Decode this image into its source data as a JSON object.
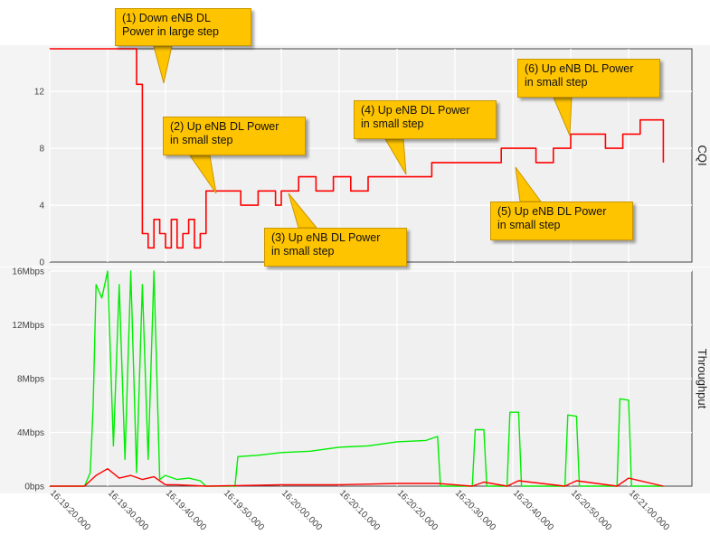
{
  "chart_data": [
    {
      "type": "line",
      "title": "",
      "ylabel": "CQI",
      "ylim": [
        0,
        15
      ],
      "yticks": [
        0,
        4,
        8,
        12
      ],
      "grid": true,
      "series": [
        {
          "color": "#ff0000",
          "x": [
            "16:19:20",
            "16:19:34.7",
            "16:19:35",
            "16:19:36",
            "16:19:37",
            "16:19:38",
            "16:19:39",
            "16:19:40",
            "16:19:41",
            "16:19:42",
            "16:19:43",
            "16:19:44",
            "16:19:45",
            "16:19:46",
            "16:19:46.5",
            "16:19:47",
            "16:19:50",
            "16:19:53",
            "16:19:56",
            "16:19:59",
            "16:20:00",
            "16:20:03",
            "16:20:06",
            "16:20:09",
            "16:20:12",
            "16:20:15",
            "16:20:18",
            "16:20:20",
            "16:20:23",
            "16:20:26",
            "16:20:29",
            "16:20:32",
            "16:20:35",
            "16:20:38",
            "16:20:41",
            "16:20:44",
            "16:20:47",
            "16:20:50",
            "16:20:53",
            "16:20:56",
            "16:20:59",
            "16:21:02",
            "16:21:05",
            "16:21:06"
          ],
          "y": [
            15,
            15,
            12.5,
            2,
            1,
            3,
            2,
            1,
            3,
            1,
            2,
            3,
            1,
            2,
            2,
            5,
            5,
            4,
            5,
            4,
            5,
            6,
            5,
            6,
            5,
            6,
            6,
            6,
            6,
            7,
            7,
            7,
            7,
            8,
            8,
            7,
            8,
            9,
            9,
            8,
            9,
            10,
            10,
            7
          ]
        }
      ]
    },
    {
      "type": "line",
      "title": "",
      "ylabel": "Throughput",
      "ylim": [
        0,
        16
      ],
      "yticks": [
        0,
        4,
        8,
        12,
        16
      ],
      "ytick_labels": [
        "0bps",
        "4Mbps",
        "8Mbps",
        "12Mbps",
        "16Mbps"
      ],
      "x_ticks": [
        "16:19:20.000",
        "16:19:30.000",
        "16:19:40.000",
        "16:19:50.000",
        "16:20:00.000",
        "16:20:10.000",
        "16:20:20.000",
        "16:20:30.000",
        "16:20:40.000",
        "16:20:50.000",
        "16:21:00.000"
      ],
      "grid": true,
      "series": [
        {
          "color": "#00ee00",
          "x": [
            "16:19:20",
            "16:19:26",
            "16:19:27",
            "16:19:27.5",
            "16:19:28",
            "16:19:29",
            "16:19:30",
            "16:19:31",
            "16:19:32",
            "16:19:33",
            "16:19:34",
            "16:19:35",
            "16:19:36",
            "16:19:37",
            "16:19:38",
            "16:19:39",
            "16:19:40",
            "16:19:42",
            "16:19:44",
            "16:19:46",
            "16:19:47",
            "16:19:52",
            "16:19:52.5",
            "16:19:56",
            "16:20:00",
            "16:20:05",
            "16:20:10",
            "16:20:15",
            "16:20:20",
            "16:20:25",
            "16:20:27",
            "16:20:27.5",
            "16:20:33",
            "16:20:33.5",
            "16:20:35",
            "16:20:35.5",
            "16:20:39",
            "16:20:39.5",
            "16:20:41",
            "16:20:41.5",
            "16:20:49",
            "16:20:49.5",
            "16:20:51",
            "16:20:51.5",
            "16:20:58",
            "16:20:58.5",
            "16:21:00",
            "16:21:00.5",
            "16:21:06"
          ],
          "y": [
            0,
            0,
            1,
            6,
            15,
            14,
            16,
            3,
            15,
            2,
            16,
            1,
            15,
            2,
            16,
            0.5,
            0.8,
            0.5,
            0.6,
            0.4,
            0,
            0,
            2.2,
            2.3,
            2.5,
            2.6,
            2.9,
            3.0,
            3.3,
            3.4,
            3.7,
            0,
            0,
            4.2,
            4.2,
            0,
            0,
            5.5,
            5.5,
            0,
            0,
            5.3,
            5.2,
            0,
            0,
            6.5,
            6.4,
            0,
            0
          ]
        },
        {
          "color": "#ff0000",
          "x": [
            "16:19:20",
            "16:19:26",
            "16:19:28",
            "16:19:30",
            "16:19:32",
            "16:19:34",
            "16:19:36",
            "16:19:38",
            "16:19:40",
            "16:19:42",
            "16:19:47",
            "16:20:00",
            "16:20:10",
            "16:20:20",
            "16:20:27",
            "16:20:33",
            "16:20:35",
            "16:20:39",
            "16:20:41",
            "16:20:49",
            "16:20:51",
            "16:20:58",
            "16:21:00",
            "16:21:06"
          ],
          "y": [
            0,
            0,
            0.8,
            1.3,
            0.6,
            0.8,
            0.5,
            0.7,
            0.1,
            0.1,
            0,
            0.1,
            0.1,
            0.2,
            0.2,
            0,
            0.3,
            0,
            0.4,
            0,
            0.4,
            0,
            0.6,
            0
          ]
        }
      ]
    }
  ],
  "annotations": [
    {
      "id": "ann-1",
      "text": "(1) Down eNB DL\nPower in large step"
    },
    {
      "id": "ann-2",
      "text": "(2) Up eNB DL Power\nin small step"
    },
    {
      "id": "ann-3",
      "text": "(3) Up eNB DL Power\nin small step"
    },
    {
      "id": "ann-4",
      "text": "(4) Up eNB DL Power\nin small step"
    },
    {
      "id": "ann-5",
      "text": "(5) Up eNB DL Power\nin small step"
    },
    {
      "id": "ann-6",
      "text": "(6) Up eNB DL Power\nin small step"
    }
  ]
}
